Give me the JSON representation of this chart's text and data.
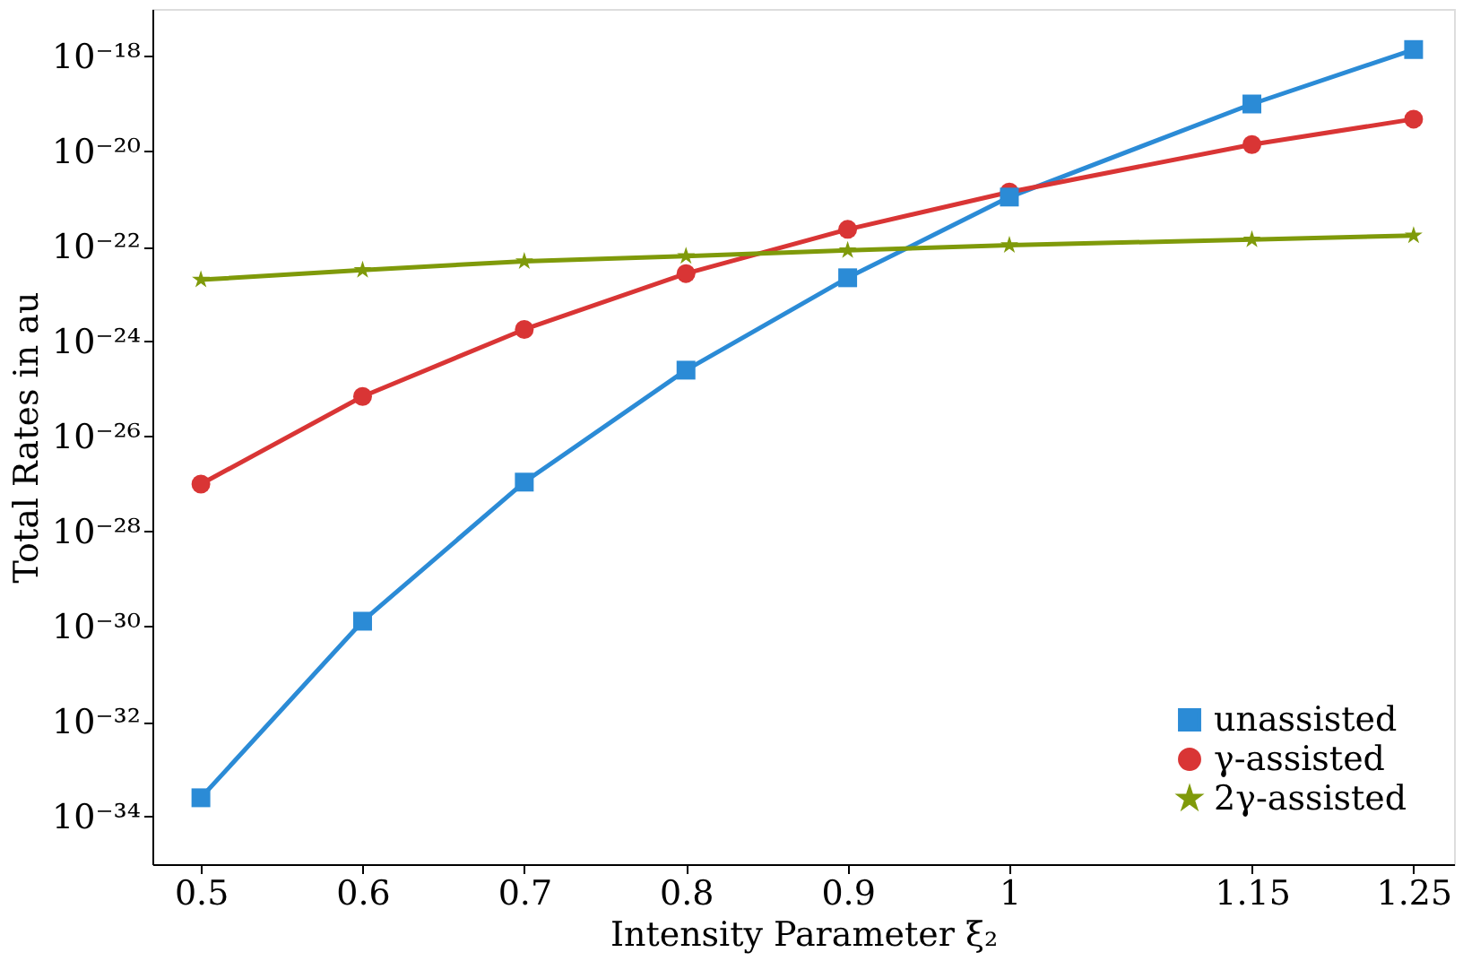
{
  "chart_data": {
    "type": "line",
    "xlabel": "Intensity Parameter ξ₂",
    "ylabel": "Total Rates in au",
    "x": [
      0.5,
      0.6,
      0.7,
      0.8,
      0.9,
      1,
      1.15,
      1.25
    ],
    "series": [
      {
        "name": "unassisted",
        "color": "#2b8bd6",
        "marker": "square",
        "values": [
          2.5e-34,
          1.3e-30,
          1.1e-27,
          2.5e-25,
          2.2e-23,
          1.1e-21,
          1e-19,
          1.4e-18
        ]
      },
      {
        "name": "γ-assisted",
        "color": "#d93535",
        "marker": "circle",
        "values": [
          1e-27,
          7e-26,
          1.8e-24,
          2.7e-23,
          2.3e-22,
          1.4e-21,
          1.4e-20,
          4.8e-20
        ]
      },
      {
        "name": "2γ-assisted",
        "color": "#7f9a0a",
        "marker": "star",
        "values": [
          2e-23,
          3.2e-23,
          4.9e-23,
          6.3e-23,
          8.3e-23,
          1.07e-22,
          1.4e-22,
          1.7e-22
        ]
      }
    ],
    "log": "y",
    "xlim": [
      0.47,
      1.275
    ],
    "ylim": [
      1e-35,
      1e-17
    ],
    "xticks": [
      0.5,
      0.6,
      0.7,
      0.8,
      0.9,
      1,
      1.15,
      1.25
    ],
    "yticks": [
      {
        "value": 1e-34,
        "label": "10⁻³⁴"
      },
      {
        "value": 1e-32,
        "label": "10⁻³²"
      },
      {
        "value": 1e-30,
        "label": "10⁻³⁰"
      },
      {
        "value": 1e-28,
        "label": "10⁻²⁸"
      },
      {
        "value": 1e-26,
        "label": "10⁻²⁶"
      },
      {
        "value": 1e-24,
        "label": "10⁻²⁴"
      },
      {
        "value": 1e-22,
        "label": "10⁻²²"
      },
      {
        "value": 1e-20,
        "label": "10⁻²⁰"
      },
      {
        "value": 1e-18,
        "label": "10⁻¹⁸"
      }
    ],
    "grid": false,
    "legend": "bottom right",
    "line_style": "solid"
  }
}
